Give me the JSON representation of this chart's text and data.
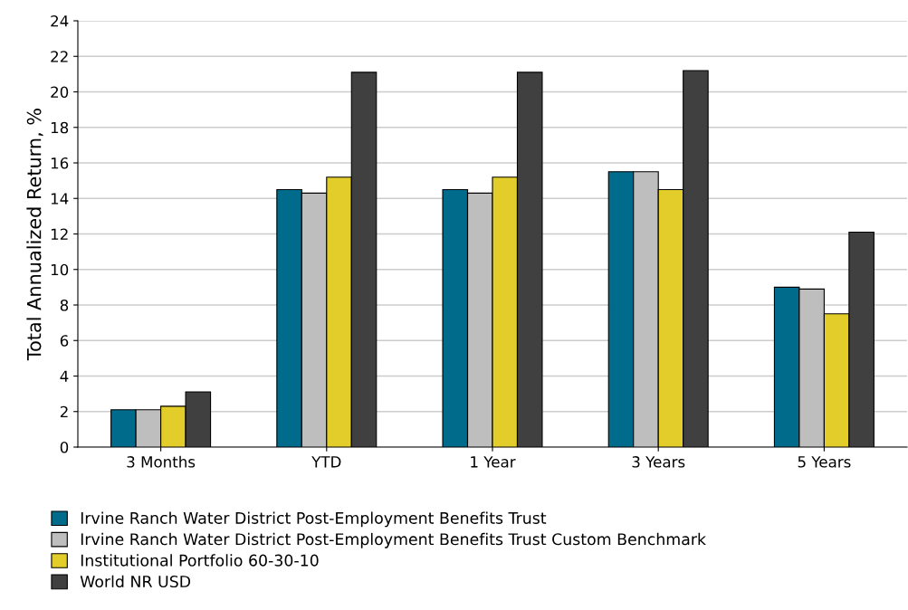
{
  "chart_data": {
    "type": "bar",
    "ylabel": "Total Annualized Return, %",
    "categories": [
      "3 Months",
      "YTD",
      "1 Year",
      "3 Years",
      "5 Years"
    ],
    "series": [
      {
        "name": "Irvine Ranch Water District Post-Employment Benefits Trust",
        "color": "#006b8a",
        "values": [
          2.1,
          14.5,
          14.5,
          15.5,
          9.0
        ]
      },
      {
        "name": "Irvine Ranch Water District Post-Employment Benefits Trust Custom Benchmark",
        "color": "#bebebe",
        "values": [
          2.1,
          14.3,
          14.3,
          15.5,
          8.9
        ]
      },
      {
        "name": "Institutional Portfolio 60-30-10",
        "color": "#e2cd2a",
        "values": [
          2.3,
          15.2,
          15.2,
          14.5,
          7.5
        ]
      },
      {
        "name": "World NR USD",
        "color": "#404040",
        "values": [
          3.1,
          21.1,
          21.1,
          21.2,
          12.1
        ]
      }
    ],
    "ylim": [
      0,
      24
    ],
    "yticks": [
      0,
      2,
      4,
      6,
      8,
      10,
      12,
      14,
      16,
      18,
      20,
      22,
      24
    ],
    "grid": "y",
    "legend": "bottom left"
  }
}
